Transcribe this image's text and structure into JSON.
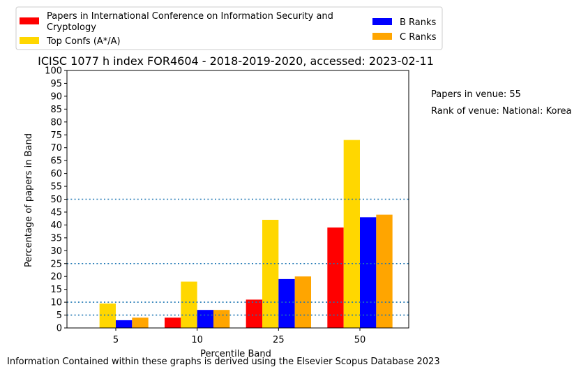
{
  "chart_data": {
    "type": "bar",
    "title": "ICISC 1077 h index FOR4604 - 2018-2019-2020, accessed: 2023-02-11",
    "xlabel": "Percentile Band",
    "ylabel": "Percentage of papers in Band",
    "categories": [
      "5",
      "10",
      "25",
      "50"
    ],
    "ylim": [
      0,
      100
    ],
    "yticks": [
      0,
      5,
      10,
      15,
      20,
      25,
      30,
      35,
      40,
      45,
      50,
      55,
      60,
      65,
      70,
      75,
      80,
      85,
      90,
      95,
      100
    ],
    "reference_lines": [
      5,
      10,
      25,
      50
    ],
    "legend_position": "top-left, outside plot",
    "series": [
      {
        "name": "Papers in International Conference on Information Security and Cryptology",
        "color": "#ff0000",
        "values": [
          0,
          4,
          11,
          39
        ]
      },
      {
        "name": "Top Confs (A*/A)",
        "color": "#ffd700",
        "values": [
          9.5,
          18,
          42,
          73
        ]
      },
      {
        "name": "B Ranks",
        "color": "#0000ff",
        "values": [
          3,
          7,
          19,
          43
        ]
      },
      {
        "name": "C Ranks",
        "color": "#ffa500",
        "values": [
          4,
          7,
          20,
          44
        ]
      }
    ]
  },
  "legend": {
    "series1_line1": "Papers in International Conference on Information Security and",
    "series1_line2": "Cryptology"
  },
  "side_notes": {
    "papers": "Papers in venue: 55",
    "rank": "Rank of venue: National: Korea"
  },
  "footer": "Information Contained within these graphs is derived using the Elsevier Scopus Database 2023"
}
